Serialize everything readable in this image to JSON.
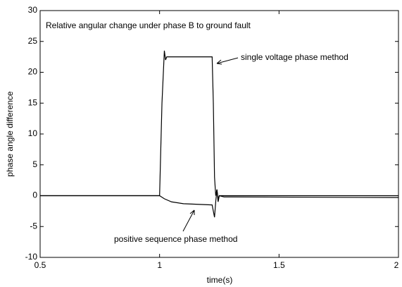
{
  "chart_data": {
    "type": "line",
    "title": "Relative angular change under phase B to ground fault",
    "xlabel": "time(s)",
    "ylabel": "phase angle difference",
    "xlim": [
      0.5,
      2
    ],
    "ylim": [
      -10,
      30
    ],
    "xticks": [
      0.5,
      1,
      1.5,
      2
    ],
    "yticks": [
      -10,
      -5,
      0,
      5,
      10,
      15,
      20,
      25,
      30
    ],
    "annotations": [
      "single voltage phase method",
      "positive sequence phase method"
    ],
    "series": [
      {
        "name": "single voltage phase method",
        "color": "#000000",
        "x": [
          0.5,
          1.0,
          1.01,
          1.02,
          1.025,
          1.03,
          1.22,
          1.225,
          1.23,
          1.235,
          1.24,
          1.245,
          1.25,
          1.26,
          2.0
        ],
        "values": [
          0,
          0,
          15,
          23.5,
          22,
          22.5,
          22.5,
          15,
          3,
          0,
          1,
          -1,
          0,
          0,
          0
        ]
      },
      {
        "name": "positive sequence phase method",
        "color": "#000000",
        "x": [
          0.5,
          1.0,
          1.02,
          1.05,
          1.1,
          1.22,
          1.23,
          1.235,
          1.24,
          1.245,
          1.25,
          1.27,
          1.3,
          2.0
        ],
        "values": [
          0,
          0,
          -0.5,
          -1,
          -1.3,
          -1.5,
          -3.5,
          -1,
          1,
          -0.5,
          0,
          -0.2,
          -0.2,
          -0.3
        ]
      }
    ]
  }
}
